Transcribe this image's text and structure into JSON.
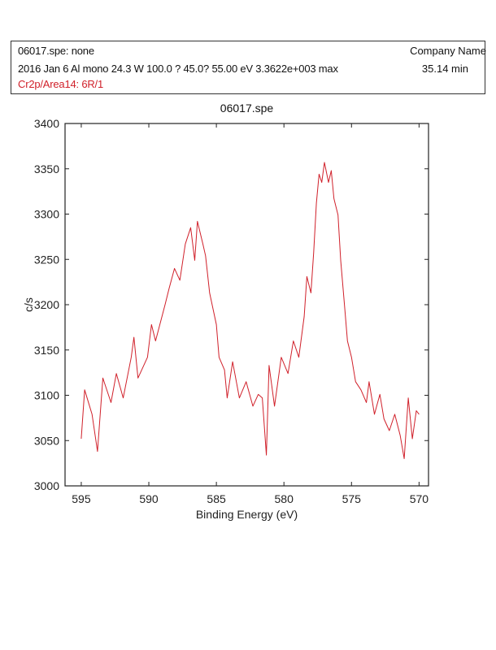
{
  "header": {
    "line1": "06017.spe: none",
    "company": "Company Name",
    "line2": "2016 Jan 6  Al mono  24.3 W  100.0 ?  45.0? 55.00 eV  3.3622e+003 max",
    "duration": "35.14 min",
    "region": "Cr2p/Area14: 6R/1"
  },
  "colors": {
    "trace": "#d0202a",
    "axis": "#222222",
    "region_text": "#d0202a"
  },
  "chart_data": {
    "type": "line",
    "title": "06017.spe",
    "xlabel": "Binding Energy (eV)",
    "ylabel": "c/s",
    "xlim": [
      596.2,
      569.3
    ],
    "ylim": [
      3000,
      3400
    ],
    "x_reversed": true,
    "grid": false,
    "xticks": [
      595,
      590,
      585,
      580,
      575,
      570
    ],
    "xtick_labels": [
      "595",
      "590",
      "585",
      "580",
      "575",
      "570"
    ],
    "yticks": [
      3000,
      3050,
      3100,
      3150,
      3200,
      3250,
      3300,
      3350,
      3400
    ],
    "ytick_labels": [
      "3000",
      "3050",
      "3100",
      "3150",
      "3200",
      "3250",
      "3300",
      "3350",
      "3400"
    ],
    "series": [
      {
        "name": "Cr2p",
        "x": [
          595.0,
          594.75,
          594.2,
          593.8,
          593.4,
          592.8,
          592.4,
          591.9,
          591.3,
          591.1,
          590.8,
          590.1,
          589.8,
          589.5,
          588.8,
          588.5,
          588.1,
          587.7,
          587.3,
          586.9,
          586.6,
          586.4,
          586.0,
          585.8,
          585.5,
          585.0,
          584.8,
          584.4,
          584.2,
          583.8,
          583.3,
          582.8,
          582.3,
          581.9,
          581.6,
          581.3,
          581.1,
          580.7,
          580.2,
          579.7,
          579.3,
          578.9,
          578.5,
          578.3,
          578.0,
          577.8,
          577.6,
          577.4,
          577.2,
          577.0,
          576.7,
          576.5,
          576.3,
          576.0,
          575.8,
          575.5,
          575.3,
          575.0,
          574.7,
          574.3,
          573.9,
          573.7,
          573.3,
          572.9,
          572.6,
          572.2,
          571.8,
          571.4,
          571.1,
          570.8,
          570.5,
          570.2,
          570.0
        ],
        "y": [
          3052,
          3106,
          3079,
          3038,
          3119,
          3092,
          3124,
          3097,
          3142,
          3164,
          3119,
          3142,
          3178,
          3160,
          3200,
          3218,
          3240,
          3227,
          3267,
          3285,
          3249,
          3292,
          3267,
          3254,
          3213,
          3178,
          3142,
          3128,
          3097,
          3137,
          3097,
          3115,
          3088,
          3101,
          3097,
          3034,
          3133,
          3088,
          3142,
          3124,
          3160,
          3142,
          3187,
          3231,
          3213,
          3258,
          3312,
          3344,
          3335,
          3357,
          3335,
          3348,
          3317,
          3299,
          3249,
          3196,
          3160,
          3142,
          3115,
          3106,
          3092,
          3115,
          3079,
          3101,
          3074,
          3061,
          3079,
          3056,
          3030,
          3097,
          3052,
          3083,
          3079
        ]
      }
    ]
  }
}
